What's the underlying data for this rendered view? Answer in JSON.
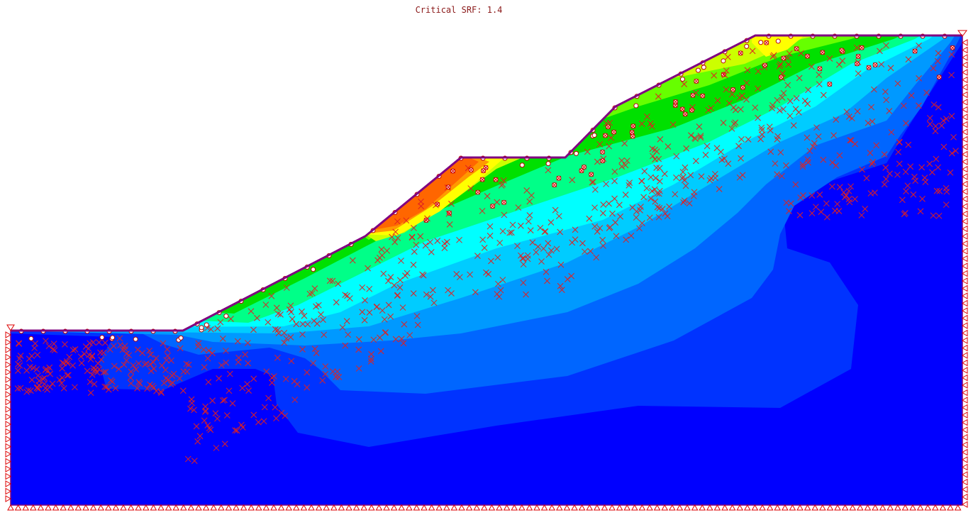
{
  "header": {
    "title": "Critical SRF: 1.4"
  }
}
